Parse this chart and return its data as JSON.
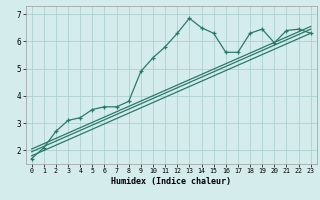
{
  "xlabel": "Humidex (Indice chaleur)",
  "ylabel": "",
  "bg_color": "#d4ecec",
  "grid_color": "#b0d0d0",
  "line_color": "#2a7a6a",
  "xlim": [
    -0.5,
    23.5
  ],
  "ylim": [
    1.5,
    7.3
  ],
  "xticks": [
    0,
    1,
    2,
    3,
    4,
    5,
    6,
    7,
    8,
    9,
    10,
    11,
    12,
    13,
    14,
    15,
    16,
    17,
    18,
    19,
    20,
    21,
    22,
    23
  ],
  "yticks": [
    2,
    3,
    4,
    5,
    6,
    7
  ],
  "series1_x": [
    0,
    1,
    2,
    3,
    4,
    5,
    6,
    7,
    8,
    9,
    10,
    11,
    12,
    13,
    14,
    15,
    16,
    17,
    18,
    19,
    20,
    21,
    22,
    23
  ],
  "series1_y": [
    1.7,
    2.1,
    2.7,
    3.1,
    3.2,
    3.5,
    3.6,
    3.6,
    3.8,
    4.9,
    5.4,
    5.8,
    6.3,
    6.85,
    6.5,
    6.3,
    5.6,
    5.6,
    6.3,
    6.45,
    5.95,
    6.4,
    6.45,
    6.3
  ],
  "series2_x": [
    0,
    23
  ],
  "series2_y": [
    1.8,
    6.3
  ],
  "series3_x": [
    0,
    23
  ],
  "series3_y": [
    2.05,
    6.55
  ],
  "series4_x": [
    0,
    23
  ],
  "series4_y": [
    1.95,
    6.45
  ]
}
